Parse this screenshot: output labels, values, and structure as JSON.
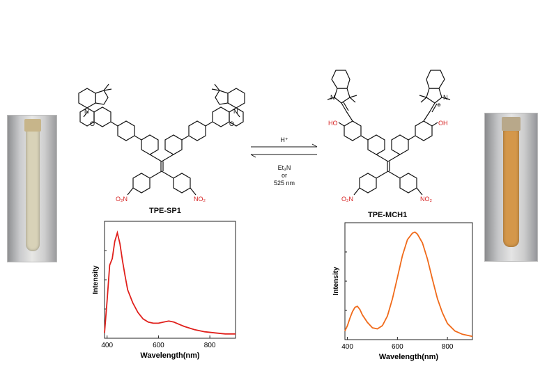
{
  "left_compound": {
    "name": "TPE-SP1",
    "fragments": {
      "n": "N",
      "o": "O",
      "no2": "O₂N",
      "no2_right": "NO₂"
    }
  },
  "right_compound": {
    "name": "TPE-MCH1",
    "fragments": {
      "n": "N",
      "plus": "⊕",
      "ho": "HO",
      "oh": "OH",
      "no2": "O₂N",
      "no2_right": "NO₂"
    }
  },
  "reaction": {
    "forward": "H⁺",
    "reverse_line1": "Et₃N",
    "reverse_line2": "or",
    "reverse_line3": "525 nm"
  },
  "colors": {
    "left_curve": "#e0201c",
    "right_curve": "#f06a1a",
    "right_vial_liquid": "#d4974a",
    "left_vial_liquid": "#d8d2b8",
    "nitro": "#d62020",
    "hydroxy": "#d62020"
  },
  "chart_data": [
    {
      "type": "line",
      "xlabel": "Wavelength(nm)",
      "ylabel": "Intensity",
      "xlim": [
        390,
        900
      ],
      "x_ticks": [
        "400",
        "600",
        "800"
      ],
      "series": [
        {
          "x": [
            390,
            400,
            410,
            420,
            430,
            440,
            450,
            460,
            470,
            480,
            500,
            520,
            540,
            560,
            580,
            600,
            620,
            640,
            660,
            680,
            700,
            740,
            780,
            820,
            860,
            900
          ],
          "values": [
            0.05,
            0.35,
            0.68,
            0.74,
            0.9,
            0.98,
            0.88,
            0.72,
            0.58,
            0.45,
            0.33,
            0.24,
            0.18,
            0.15,
            0.14,
            0.14,
            0.15,
            0.16,
            0.15,
            0.13,
            0.11,
            0.08,
            0.06,
            0.05,
            0.04,
            0.04
          ]
        }
      ]
    },
    {
      "type": "line",
      "xlabel": "Wavelength(nm)",
      "ylabel": "Intensity",
      "xlim": [
        390,
        900
      ],
      "x_ticks": [
        "400",
        "600",
        "800"
      ],
      "series": [
        {
          "x": [
            390,
            400,
            410,
            420,
            430,
            440,
            450,
            460,
            480,
            500,
            520,
            540,
            560,
            580,
            600,
            620,
            640,
            660,
            670,
            680,
            700,
            720,
            740,
            760,
            780,
            800,
            830,
            860,
            900
          ],
          "values": [
            0.08,
            0.13,
            0.2,
            0.26,
            0.3,
            0.31,
            0.28,
            0.23,
            0.16,
            0.11,
            0.1,
            0.13,
            0.22,
            0.38,
            0.58,
            0.78,
            0.93,
            0.99,
            1.0,
            0.98,
            0.9,
            0.75,
            0.56,
            0.38,
            0.25,
            0.15,
            0.08,
            0.05,
            0.03
          ]
        }
      ]
    }
  ]
}
